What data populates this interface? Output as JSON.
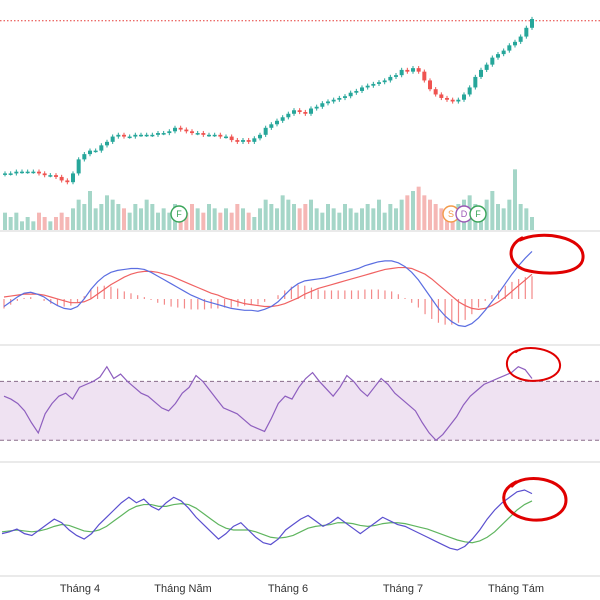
{
  "colors": {
    "up": "#26a69a",
    "down": "#ef5350",
    "volume_up": "#a5d6c8",
    "volume_down": "#f5b7b5",
    "macd_line": "#5b6ee1",
    "signal_line": "#f06262",
    "rsi_line": "#8e5fbf",
    "rsi_band": "#efe2f2",
    "stoch_k": "#5a4fcf",
    "stoch_d": "#5fb55f",
    "annotation": "#e00000",
    "price_line": "#e53935",
    "divider": "#d6d6d6"
  },
  "chart_data": [
    {
      "type": "candlestick",
      "panel": "price",
      "x_range": [
        0,
        100
      ],
      "close": [
        58,
        58,
        59,
        59,
        59,
        59,
        58,
        57,
        57,
        56,
        54,
        53,
        58,
        66,
        69,
        71,
        71,
        74,
        76,
        79,
        80,
        79,
        79,
        80,
        80,
        80,
        80,
        81,
        81,
        82,
        84,
        83,
        82,
        81,
        81,
        80,
        80,
        80,
        79,
        79,
        77,
        76,
        77,
        76,
        78,
        80,
        84,
        86,
        88,
        90,
        92,
        94,
        93,
        92,
        95,
        96,
        98,
        99,
        100,
        101,
        102,
        104,
        105,
        107,
        108,
        109,
        110,
        111,
        113,
        114,
        117,
        116,
        118,
        116,
        111,
        106,
        103,
        101,
        100,
        99,
        100,
        103,
        107,
        113,
        117,
        120,
        124,
        126,
        128,
        131,
        133,
        136,
        141,
        146
      ],
      "ylim": [
        40,
        150
      ],
      "current_price_line": 145
    },
    {
      "type": "bar",
      "panel": "volume",
      "values": [
        4,
        3,
        4,
        2,
        3,
        2,
        4,
        3,
        2,
        3,
        4,
        3,
        5,
        7,
        6,
        9,
        5,
        6,
        8,
        7,
        6,
        5,
        4,
        6,
        5,
        7,
        6,
        4,
        5,
        4,
        6,
        5,
        4,
        6,
        5,
        4,
        6,
        5,
        4,
        5,
        4,
        6,
        5,
        4,
        3,
        5,
        7,
        6,
        5,
        8,
        7,
        6,
        5,
        6,
        7,
        5,
        4,
        6,
        5,
        4,
        6,
        5,
        4,
        5,
        6,
        5,
        7,
        4,
        6,
        5,
        7,
        8,
        9,
        10,
        8,
        7,
        6,
        5,
        4,
        5,
        6,
        7,
        8,
        6,
        5,
        7,
        9,
        6,
        5,
        7,
        14,
        6,
        5,
        3
      ],
      "ylim": [
        0,
        15
      ]
    },
    {
      "type": "line",
      "panel": "macd",
      "series": [
        {
          "role": "macd",
          "values": [
            -1,
            -0.5,
            0,
            0.4,
            0.5,
            0.3,
            0,
            -0.5,
            -0.9,
            -1.2,
            -1.3,
            -1,
            -0.2,
            0.8,
            1.6,
            2.2,
            2.6,
            2.8,
            2.9,
            3,
            3,
            2.9,
            2.6,
            2.2,
            1.8,
            1.4,
            1,
            0.6,
            0.2,
            -0.1,
            -0.4,
            -0.6,
            -0.8,
            -1,
            -1.2,
            -1.3,
            -1.4,
            -1.4,
            -1.5,
            -1.3,
            -1,
            -0.5,
            0.2,
            0.9,
            1.4,
            1.7,
            1.8,
            1.9,
            2,
            2.2,
            2.4,
            2.6,
            2.8,
            3,
            3.3,
            3.5,
            3.7,
            3.8,
            3.8,
            3.6,
            3.2,
            2.6,
            1.8,
            0.8,
            -0.2,
            -1.2,
            -2,
            -2.6,
            -3,
            -3.1,
            -2.8,
            -2.2,
            -1.4,
            -0.5,
            0.4,
            1.4,
            2.4,
            3.3,
            4.1,
            4.8
          ],
          "x_step": 1.2
        },
        {
          "role": "signal",
          "values": [
            0,
            0.1,
            0.2,
            0.3,
            0.3,
            0.3,
            0.2,
            0,
            -0.2,
            -0.4,
            -0.6,
            -0.6,
            -0.5,
            -0.2,
            0.3,
            0.8,
            1.3,
            1.7,
            2.1,
            2.4,
            2.6,
            2.7,
            2.7,
            2.6,
            2.4,
            2.2,
            1.9,
            1.6,
            1.3,
            1,
            0.7,
            0.4,
            0.2,
            -0.1,
            -0.3,
            -0.5,
            -0.7,
            -0.8,
            -0.9,
            -1,
            -1,
            -0.9,
            -0.7,
            -0.4,
            -0.1,
            0.3,
            0.6,
            0.9,
            1.1,
            1.3,
            1.5,
            1.7,
            1.9,
            2.1,
            2.3,
            2.5,
            2.7,
            2.9,
            3,
            3.1,
            3.1,
            3,
            2.7,
            2.4,
            1.9,
            1.3,
            0.7,
            0.1,
            -0.5,
            -0.9,
            -1.2,
            -1.3,
            -1.2,
            -0.9,
            -0.5,
            0,
            0.6,
            1.2,
            1.8,
            2.4
          ],
          "x_step": 1.2
        }
      ],
      "ylim": [
        -4,
        6
      ]
    },
    {
      "type": "line",
      "panel": "rsi",
      "values": [
        60,
        58,
        55,
        50,
        42,
        35,
        48,
        55,
        60,
        62,
        58,
        66,
        68,
        70,
        73,
        80,
        72,
        75,
        70,
        66,
        62,
        60,
        56,
        52,
        50,
        55,
        62,
        66,
        74,
        70,
        64,
        58,
        52,
        50,
        48,
        44,
        40,
        38,
        36,
        45,
        55,
        60,
        58,
        66,
        72,
        76,
        70,
        65,
        60,
        66,
        74,
        70,
        64,
        60,
        66,
        72,
        68,
        62,
        58,
        54,
        50,
        42,
        35,
        30,
        34,
        40,
        46,
        54,
        60,
        64,
        68,
        70,
        72,
        74,
        76,
        80,
        78,
        72
      ],
      "band": [
        30,
        70
      ],
      "ylim": [
        20,
        90
      ]
    },
    {
      "type": "line",
      "panel": "stochastic",
      "series": [
        {
          "role": "k",
          "values": [
            40,
            42,
            45,
            40,
            38,
            44,
            50,
            56,
            52,
            44,
            38,
            34,
            40,
            50,
            58,
            66,
            74,
            80,
            74,
            78,
            70,
            66,
            74,
            80,
            76,
            68,
            58,
            50,
            42,
            34,
            40,
            48,
            52,
            44,
            36,
            30,
            28,
            34,
            44,
            50,
            56,
            60,
            54,
            48,
            52,
            58,
            52,
            46,
            40,
            46,
            52,
            58,
            54,
            50,
            48,
            44,
            40,
            36,
            32,
            28,
            24,
            22,
            26,
            34,
            44,
            56,
            66,
            74,
            80,
            86,
            88,
            84
          ],
          "x_step": 1.3
        },
        {
          "role": "d",
          "values": [
            42,
            43,
            44,
            43,
            42,
            43,
            45,
            48,
            50,
            49,
            46,
            43,
            42,
            44,
            48,
            54,
            60,
            66,
            70,
            72,
            72,
            70,
            70,
            72,
            73,
            72,
            68,
            62,
            56,
            50,
            46,
            44,
            44,
            44,
            42,
            39,
            36,
            35,
            36,
            38,
            42,
            46,
            48,
            49,
            50,
            52,
            52,
            51,
            49,
            48,
            49,
            51,
            52,
            52,
            51,
            49,
            47,
            45,
            42,
            39,
            36,
            33,
            31,
            30,
            32,
            36,
            42,
            50,
            58,
            66,
            72,
            76
          ],
          "x_step": 1.3
        }
      ],
      "ylim": [
        0,
        110
      ]
    }
  ],
  "x_axis": {
    "tick_labels": [
      "Tháng 4",
      "Tháng Năm",
      "Tháng 6",
      "Tháng 7",
      "Tháng Tám"
    ]
  },
  "event_badges": [
    "F",
    "S",
    "D",
    "F"
  ]
}
